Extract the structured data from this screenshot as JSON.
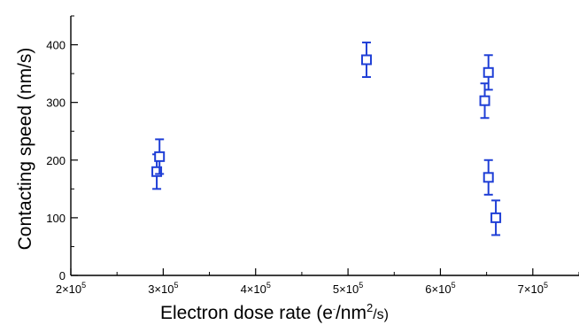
{
  "chart_data": {
    "type": "scatter",
    "title": "",
    "xlabel": "Electron dose rate (e⁻/nm²/s)",
    "ylabel": "Contacting speed (nm/s)",
    "xlim": [
      200000,
      750000
    ],
    "ylim": [
      0,
      450
    ],
    "grid": false,
    "x_ticks": [
      200000,
      300000,
      400000,
      500000,
      600000,
      700000
    ],
    "x_tick_labels": [
      {
        "base": "2×10",
        "exp": "5"
      },
      {
        "base": "3×10",
        "exp": "5"
      },
      {
        "base": "4×10",
        "exp": "5"
      },
      {
        "base": "5×10",
        "exp": "5"
      },
      {
        "base": "6×10",
        "exp": "5"
      },
      {
        "base": "7×10",
        "exp": "5"
      }
    ],
    "y_ticks": [
      0,
      100,
      200,
      300,
      400
    ],
    "y_tick_labels": [
      "0",
      "100",
      "200",
      "300",
      "400"
    ],
    "marker": "open-square",
    "color": "#1f3fd6",
    "points": [
      {
        "x": 293000,
        "y": 180,
        "err": 30
      },
      {
        "x": 296000,
        "y": 206,
        "err": 30
      },
      {
        "x": 520000,
        "y": 374,
        "err": 30
      },
      {
        "x": 648000,
        "y": 303,
        "err": 30
      },
      {
        "x": 652000,
        "y": 352,
        "err": 30
      },
      {
        "x": 652000,
        "y": 170,
        "err": 30
      },
      {
        "x": 660000,
        "y": 100,
        "err": 30
      }
    ]
  },
  "axis_text": {
    "x_main": "Electron dose rate (e",
    "x_sup1": "-",
    "x_mid": "/nm",
    "x_sup2": "2",
    "x_end": "/s)",
    "y_main": "Contacting speed (nm/s)"
  }
}
